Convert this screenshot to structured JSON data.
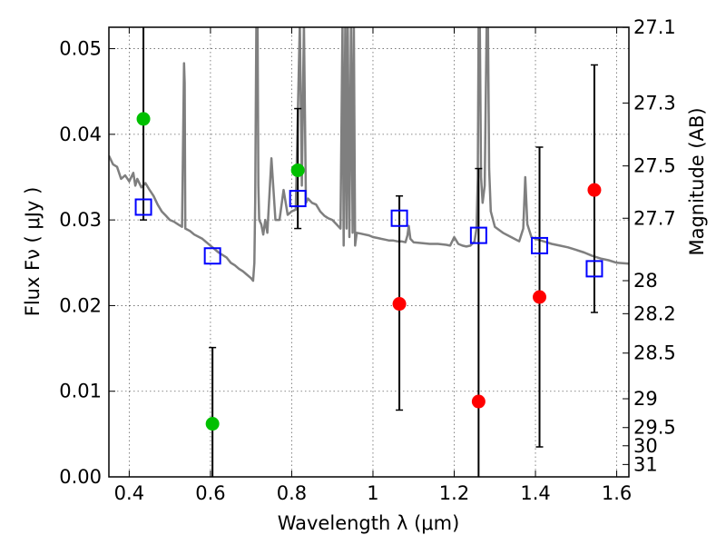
{
  "chart_data": {
    "type": "scatter",
    "xlabel": "Wavelength  λ (μm)",
    "ylabel": "Flux  Fν  ( μJy )",
    "ylabel_right": "Magnitude (AB)",
    "xlim": [
      0.35,
      1.63
    ],
    "ylim": [
      0.0,
      0.0525
    ],
    "x_ticks": [
      0.4,
      0.6,
      0.8,
      1.0,
      1.2,
      1.4,
      1.6
    ],
    "x_tick_labels": [
      "0.4",
      "0.6",
      "0.8",
      "1",
      "1.2",
      "1.4",
      "1.6"
    ],
    "y_ticks": [
      0.0,
      0.01,
      0.02,
      0.03,
      0.04,
      0.05
    ],
    "y_tick_labels": [
      "0.00",
      "0.01",
      "0.02",
      "0.03",
      "0.04",
      "0.05"
    ],
    "mag_ticks": [
      27.1,
      27.3,
      27.5,
      27.7,
      28,
      28.2,
      28.5,
      29,
      29.5,
      30,
      31
    ],
    "mag_tick_labels": [
      "27.1",
      "27.3",
      "27.5",
      "27.7",
      "28",
      "28.2",
      "28.5",
      "29",
      "29.5",
      "30",
      "31"
    ],
    "grid": true,
    "colors": {
      "model": "#7f7f7f",
      "model_points": "#0000ff",
      "green_points": "#00c000",
      "red_points": "#ff0000",
      "errorbars": "#000000"
    },
    "model_spectrum": {
      "x": [
        0.35,
        0.36,
        0.37,
        0.38,
        0.39,
        0.4,
        0.41,
        0.415,
        0.42,
        0.43,
        0.44,
        0.45,
        0.46,
        0.47,
        0.48,
        0.49,
        0.5,
        0.51,
        0.52,
        0.53,
        0.535,
        0.5365,
        0.538,
        0.55,
        0.56,
        0.58,
        0.6,
        0.62,
        0.64,
        0.65,
        0.66,
        0.67,
        0.68,
        0.69,
        0.7,
        0.705,
        0.708,
        0.71,
        0.713,
        0.716,
        0.718,
        0.72,
        0.725,
        0.73,
        0.735,
        0.74,
        0.75,
        0.76,
        0.77,
        0.78,
        0.79,
        0.8,
        0.81,
        0.82,
        0.825,
        0.83,
        0.835,
        0.84,
        0.85,
        0.86,
        0.87,
        0.88,
        0.89,
        0.9,
        0.91,
        0.92,
        0.925,
        0.928,
        0.932,
        0.935,
        0.938,
        0.942,
        0.946,
        0.95,
        0.953,
        0.956,
        0.96,
        0.97,
        0.98,
        0.99,
        1.0,
        1.01,
        1.02,
        1.03,
        1.04,
        1.05,
        1.06,
        1.07,
        1.08,
        1.085,
        1.088,
        1.092,
        1.1,
        1.12,
        1.14,
        1.16,
        1.18,
        1.19,
        1.2,
        1.21,
        1.22,
        1.23,
        1.24,
        1.25,
        1.255,
        1.258,
        1.26,
        1.263,
        1.266,
        1.27,
        1.275,
        1.28,
        1.283,
        1.286,
        1.29,
        1.3,
        1.32,
        1.34,
        1.36,
        1.37,
        1.375,
        1.38,
        1.39,
        1.4,
        1.42,
        1.44,
        1.46,
        1.48,
        1.5,
        1.52,
        1.54,
        1.56,
        1.58,
        1.6,
        1.63
      ],
      "y": [
        0.0375,
        0.0365,
        0.0362,
        0.0348,
        0.0352,
        0.0345,
        0.0355,
        0.034,
        0.0348,
        0.0338,
        0.0343,
        0.0335,
        0.0328,
        0.0318,
        0.031,
        0.0305,
        0.03,
        0.0298,
        0.0295,
        0.0292,
        0.0483,
        0.046,
        0.029,
        0.0287,
        0.0283,
        0.0278,
        0.027,
        0.0262,
        0.0256,
        0.025,
        0.0247,
        0.0243,
        0.024,
        0.0236,
        0.0232,
        0.0229,
        0.025,
        0.032,
        0.053,
        0.053,
        0.034,
        0.03,
        0.0295,
        0.0283,
        0.03,
        0.0285,
        0.0372,
        0.03,
        0.03,
        0.0335,
        0.0306,
        0.031,
        0.0312,
        0.053,
        0.034,
        0.053,
        0.032,
        0.0325,
        0.032,
        0.0318,
        0.031,
        0.0305,
        0.0302,
        0.03,
        0.0295,
        0.029,
        0.053,
        0.027,
        0.053,
        0.029,
        0.053,
        0.028,
        0.053,
        0.0285,
        0.053,
        0.027,
        0.0285,
        0.0284,
        0.0283,
        0.0282,
        0.028,
        0.0279,
        0.0278,
        0.0277,
        0.0276,
        0.0276,
        0.0275,
        0.0275,
        0.0274,
        0.0282,
        0.0293,
        0.0278,
        0.0274,
        0.0273,
        0.0272,
        0.0272,
        0.0271,
        0.027,
        0.028,
        0.0272,
        0.027,
        0.0269,
        0.027,
        0.0275,
        0.029,
        0.035,
        0.053,
        0.053,
        0.035,
        0.032,
        0.034,
        0.053,
        0.053,
        0.036,
        0.031,
        0.0292,
        0.0285,
        0.028,
        0.0275,
        0.029,
        0.035,
        0.0295,
        0.028,
        0.0278,
        0.0275,
        0.0272,
        0.027,
        0.0268,
        0.0265,
        0.0262,
        0.0258,
        0.0255,
        0.0253,
        0.025,
        0.0249
      ]
    },
    "series": [
      {
        "marker": "square",
        "color": "#0000ff",
        "x": [
          0.435,
          0.605,
          0.815,
          1.065,
          1.26,
          1.41,
          1.545
        ],
        "y": [
          0.0315,
          0.0258,
          0.0325,
          0.0302,
          0.0282,
          0.027,
          0.0243
        ]
      },
      {
        "marker": "circle",
        "color": "#00c000",
        "x": [
          0.435,
          0.605,
          0.815
        ],
        "y": [
          0.0418,
          0.0062,
          0.0358
        ],
        "yerr_low": [
          0.03,
          0.0,
          0.029
        ],
        "yerr_high": [
          0.0525,
          0.0151,
          0.043
        ]
      },
      {
        "marker": "circle",
        "color": "#ff0000",
        "x": [
          1.065,
          1.26,
          1.41,
          1.545
        ],
        "y": [
          0.0202,
          0.0088,
          0.021,
          0.0335
        ],
        "yerr_low": [
          0.0078,
          0.0,
          0.0035,
          0.0192
        ],
        "yerr_high": [
          0.0328,
          0.036,
          0.0385,
          0.0481
        ]
      }
    ]
  }
}
